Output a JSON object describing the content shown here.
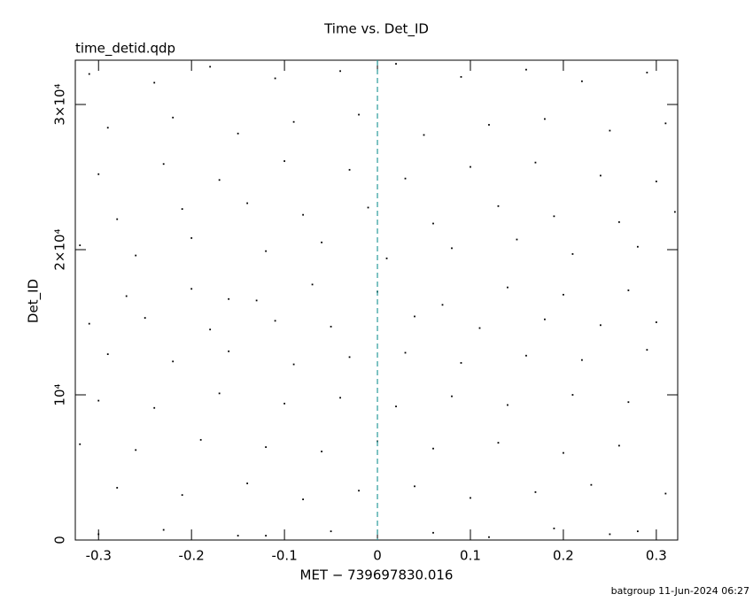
{
  "chart_data": {
    "type": "scatter",
    "title": "Time vs. Det_ID",
    "subtitle": "time_detid.qdp",
    "xlabel": "MET − 739697830.016",
    "ylabel": "Det_ID",
    "footer": "batgroup 11-Jun-2024 06:27",
    "color": "#000000",
    "xlim": [
      -0.325,
      0.323
    ],
    "ylim": [
      0,
      33050
    ],
    "xticks": [
      -0.3,
      -0.2,
      -0.1,
      0,
      0.1,
      0.2,
      0.3
    ],
    "yticks": [
      0,
      {
        "value": 10000,
        "label": "10⁴"
      },
      {
        "value": 20000,
        "label": "2×10⁴"
      },
      {
        "value": 30000,
        "label": "3×10⁴"
      }
    ],
    "vline": {
      "x": 0,
      "color": "#2a9a9a"
    },
    "x": [
      -0.31,
      -0.24,
      -0.18,
      -0.11,
      -0.04,
      0.02,
      0.09,
      0.16,
      0.22,
      0.29,
      -0.29,
      -0.22,
      -0.15,
      -0.09,
      -0.02,
      0.05,
      0.12,
      0.18,
      0.25,
      0.31,
      -0.3,
      -0.23,
      -0.17,
      -0.1,
      -0.03,
      0.03,
      0.1,
      0.17,
      0.24,
      0.3,
      -0.28,
      -0.21,
      -0.14,
      -0.08,
      -0.01,
      0.06,
      0.13,
      0.19,
      0.26,
      0.32,
      -0.32,
      -0.26,
      -0.2,
      -0.12,
      -0.06,
      0.01,
      0.08,
      0.15,
      0.21,
      0.28,
      -0.27,
      -0.2,
      -0.13,
      -0.07,
      0.0,
      0.07,
      0.14,
      0.2,
      0.27,
      -0.16,
      -0.31,
      -0.25,
      -0.18,
      -0.11,
      -0.05,
      0.04,
      0.11,
      0.18,
      0.24,
      0.3,
      -0.29,
      -0.22,
      -0.16,
      -0.09,
      -0.03,
      0.03,
      0.09,
      0.16,
      0.22,
      0.29,
      -0.3,
      -0.24,
      -0.17,
      -0.1,
      -0.04,
      0.02,
      0.08,
      0.14,
      0.21,
      0.27,
      -0.32,
      -0.26,
      -0.19,
      -0.12,
      -0.06,
      0.0,
      0.06,
      0.13,
      0.2,
      0.26,
      -0.28,
      -0.21,
      -0.14,
      -0.08,
      -0.02,
      0.04,
      0.1,
      0.17,
      0.23,
      0.31,
      -0.3,
      -0.23,
      -0.15,
      -0.05,
      0.06,
      0.12,
      0.19,
      0.25,
      0.28,
      -0.12
    ],
    "values": [
      32100,
      31500,
      32600,
      31800,
      32300,
      32800,
      31900,
      32400,
      31600,
      32200,
      28400,
      29100,
      28000,
      28800,
      29300,
      27900,
      28600,
      29000,
      28200,
      28700,
      25200,
      25900,
      24800,
      26100,
      25500,
      24900,
      25700,
      26000,
      25100,
      24700,
      22100,
      22800,
      23200,
      22400,
      22900,
      21800,
      23000,
      22300,
      21900,
      22600,
      20300,
      19600,
      20800,
      19900,
      20500,
      19400,
      20100,
      20700,
      19700,
      20200,
      16800,
      17300,
      16500,
      17600,
      17100,
      16200,
      17400,
      16900,
      17200,
      16600,
      14900,
      15300,
      14500,
      15100,
      14700,
      15400,
      14600,
      15200,
      14800,
      15000,
      12800,
      12300,
      13000,
      12100,
      12600,
      12900,
      12200,
      12700,
      12400,
      13100,
      9600,
      9100,
      10100,
      9400,
      9800,
      9200,
      9900,
      9300,
      10000,
      9500,
      6600,
      6200,
      6900,
      6400,
      6100,
      6800,
      6300,
      6700,
      6000,
      6500,
      3600,
      3100,
      3900,
      2800,
      3400,
      3700,
      2900,
      3300,
      3800,
      3200,
      400,
      700,
      300,
      600,
      500,
      200,
      800,
      400,
      600,
      300
    ]
  }
}
